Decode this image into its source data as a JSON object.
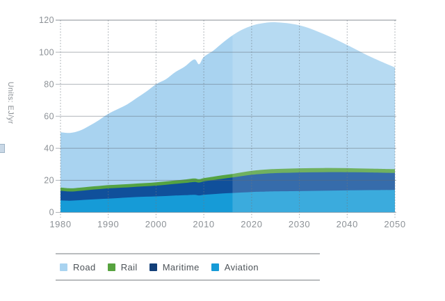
{
  "y_axis": {
    "unit_label": "Units: EJ/yr",
    "tick_labels": [
      "0",
      "20",
      "40",
      "60",
      "80",
      "100",
      "120"
    ]
  },
  "x_axis": {
    "tick_labels": [
      "1980",
      "1990",
      "2000",
      "2010",
      "2020",
      "2030",
      "2040",
      "2050"
    ]
  },
  "chart_data": {
    "type": "area",
    "stacked": true,
    "title": "",
    "xlabel": "",
    "ylabel": "Units: EJ/yr",
    "xlim": [
      1980,
      2050
    ],
    "ylim": [
      0,
      120
    ],
    "y_ticks": [
      0,
      20,
      40,
      60,
      80,
      100,
      120
    ],
    "x_ticks": [
      1980,
      1990,
      2000,
      2010,
      2020,
      2030,
      2040,
      2050
    ],
    "grid": true,
    "legend_position": "bottom",
    "projection_start_year": 2016,
    "projection_overlay_color": "#ffffff",
    "projection_overlay_opacity": 0.16,
    "x": [
      1980,
      1982,
      1984,
      1986,
      1988,
      1990,
      1992,
      1994,
      1996,
      1998,
      2000,
      2002,
      2004,
      2006,
      2008,
      2009,
      2010,
      2012,
      2014,
      2016,
      2018,
      2020,
      2022,
      2025,
      2030,
      2035,
      2040,
      2045,
      2050
    ],
    "series": [
      {
        "name": "Aviation",
        "color": "#169bd7",
        "values": [
          7.5,
          7.3,
          7.6,
          8.0,
          8.3,
          8.6,
          8.9,
          9.3,
          9.6,
          9.8,
          10.0,
          10.2,
          10.5,
          10.7,
          11.0,
          10.6,
          11.0,
          11.4,
          11.8,
          12.1,
          12.4,
          12.7,
          12.9,
          13.1,
          13.3,
          13.5,
          13.7,
          13.9,
          14.0
        ]
      },
      {
        "name": "Maritime",
        "color": "#10509b",
        "values": [
          6.0,
          5.7,
          5.8,
          6.0,
          6.2,
          6.4,
          6.4,
          6.3,
          6.4,
          6.5,
          6.7,
          7.0,
          7.3,
          7.6,
          8.0,
          8.0,
          8.3,
          8.8,
          9.2,
          9.7,
          10.3,
          10.8,
          11.1,
          11.4,
          11.6,
          11.6,
          11.4,
          11.0,
          10.6
        ]
      },
      {
        "name": "Rail",
        "color": "#55a342",
        "values": [
          2.0,
          2.0,
          2.0,
          2.0,
          2.0,
          2.0,
          2.0,
          2.0,
          2.0,
          2.0,
          2.1,
          2.1,
          2.1,
          2.2,
          2.2,
          2.1,
          2.1,
          2.1,
          2.2,
          2.2,
          2.3,
          2.4,
          2.5,
          2.6,
          2.6,
          2.6,
          2.5,
          2.4,
          2.4
        ]
      },
      {
        "name": "Road",
        "color": "#a9d3f0",
        "values": [
          34.5,
          34.6,
          35.6,
          38.0,
          41.0,
          44.5,
          47.2,
          49.9,
          53.5,
          57.2,
          61.2,
          63.7,
          67.6,
          70.5,
          74.3,
          71.8,
          75.6,
          78.7,
          82.8,
          86.5,
          89.0,
          90.6,
          91.4,
          91.6,
          89.3,
          83.8,
          76.9,
          69.7,
          63.5
        ]
      }
    ],
    "totals_note": "total peaks near 118.7 EJ/yr around 2025, declines to ~90.5 by 2050"
  },
  "legend": {
    "items": [
      {
        "label": "Road",
        "color": "#a9d3f0"
      },
      {
        "label": "Rail",
        "color": "#57a33f"
      },
      {
        "label": "Maritime",
        "color": "#123f78"
      },
      {
        "label": "Aviation",
        "color": "#169bd7"
      }
    ]
  }
}
